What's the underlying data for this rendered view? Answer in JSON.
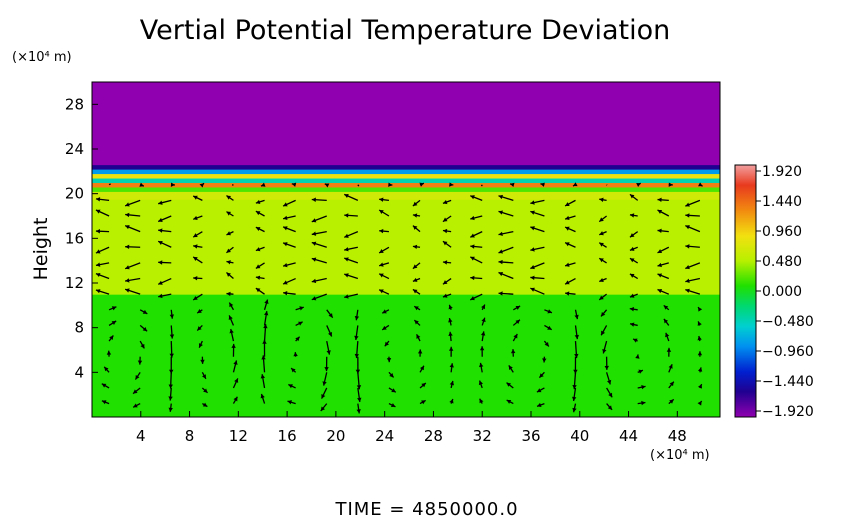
{
  "chart_data": {
    "type": "heatmap",
    "title": "Vertial Potential Temperature Deviation",
    "ylabel": "Height",
    "xlabel": "",
    "x_unit": "(×10⁴ m)",
    "y_unit": "(×10⁴ m)",
    "xlim": [
      0,
      51.5
    ],
    "ylim": [
      0,
      30
    ],
    "x_ticks": [
      4,
      8,
      12,
      16,
      20,
      24,
      28,
      32,
      36,
      40,
      44,
      48
    ],
    "y_ticks": [
      4,
      8,
      12,
      16,
      20,
      24,
      28
    ],
    "colorbar": {
      "ticks": [
        "1.920",
        "1.440",
        "0.960",
        "0.480",
        "0.000",
        "-0.480",
        "-0.960",
        "-1.440",
        "-1.920"
      ],
      "range": [
        -1.92,
        1.92
      ]
    },
    "field_bands": [
      {
        "y0": 0,
        "y1": 11,
        "value": 0.05
      },
      {
        "y0": 11,
        "y1": 19.5,
        "value": 0.38
      },
      {
        "y0": 19.5,
        "y1": 20.2,
        "value": 0.55
      },
      {
        "y0": 20.2,
        "y1": 20.6,
        "value": 0.15
      },
      {
        "y0": 20.6,
        "y1": 21.0,
        "value": 1.25
      },
      {
        "y0": 21.0,
        "y1": 21.4,
        "value": -0.4
      },
      {
        "y0": 21.4,
        "y1": 21.8,
        "value": 0.75
      },
      {
        "y0": 21.8,
        "y1": 22.2,
        "value": -0.75
      },
      {
        "y0": 22.2,
        "y1": 22.6,
        "value": -1.55
      },
      {
        "y0": 22.6,
        "y1": 30,
        "value": -1.92
      }
    ],
    "vector_field": {
      "description": "wind vectors",
      "x_step": 2.55,
      "y_step": 1.4,
      "rows_y_max": 22
    },
    "annotation": "TIME  =  4850000.0"
  }
}
